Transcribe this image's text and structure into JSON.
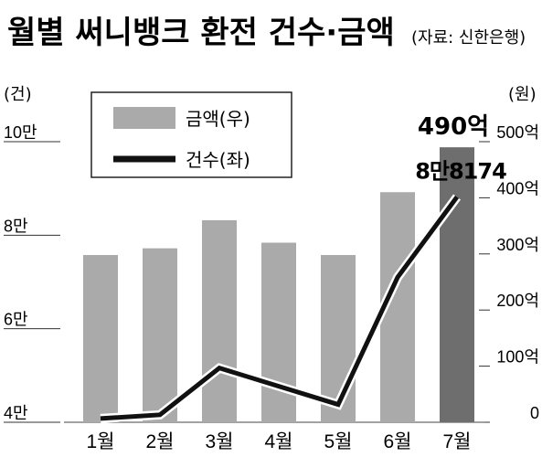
{
  "chart_data": {
    "type": "bar",
    "title": "월별 써니뱅크 환전 건수·금액",
    "subtitle": "(자료: 신한은행)",
    "categories": [
      "1월",
      "2월",
      "3월",
      "4월",
      "5월",
      "6월",
      "7월"
    ],
    "series": [
      {
        "name": "금액(우)",
        "type": "bar",
        "axis": "right",
        "values": [
          298,
          310,
          360,
          320,
          298,
          410,
          490
        ],
        "color": "#aaaaaa",
        "highlight_color": "#6e6e6e"
      },
      {
        "name": "건수(좌)",
        "type": "line",
        "axis": "left",
        "values": [
          40800,
          41600,
          51600,
          47700,
          43800,
          71000,
          88174
        ],
        "color": "#111111"
      }
    ],
    "y_left": {
      "unit_label": "(건)",
      "range": [
        40000,
        100000
      ],
      "ticks": [
        {
          "value": 40000,
          "label": "4만"
        },
        {
          "value": 60000,
          "label": "6만"
        },
        {
          "value": 80000,
          "label": "8만"
        },
        {
          "value": 100000,
          "label": "10만"
        }
      ]
    },
    "y_right": {
      "unit_label": "(원)",
      "range": [
        0,
        500
      ],
      "ticks": [
        {
          "value": 0,
          "label": "0"
        },
        {
          "value": 100,
          "label": "100억"
        },
        {
          "value": 200,
          "label": "200억"
        },
        {
          "value": 300,
          "label": "300억"
        },
        {
          "value": 400,
          "label": "400억"
        },
        {
          "value": 500,
          "label": "500억"
        }
      ]
    },
    "annotations": {
      "bar_last": "490억",
      "line_last": "8만8174"
    },
    "legend_position": "top-left",
    "grid": false
  }
}
